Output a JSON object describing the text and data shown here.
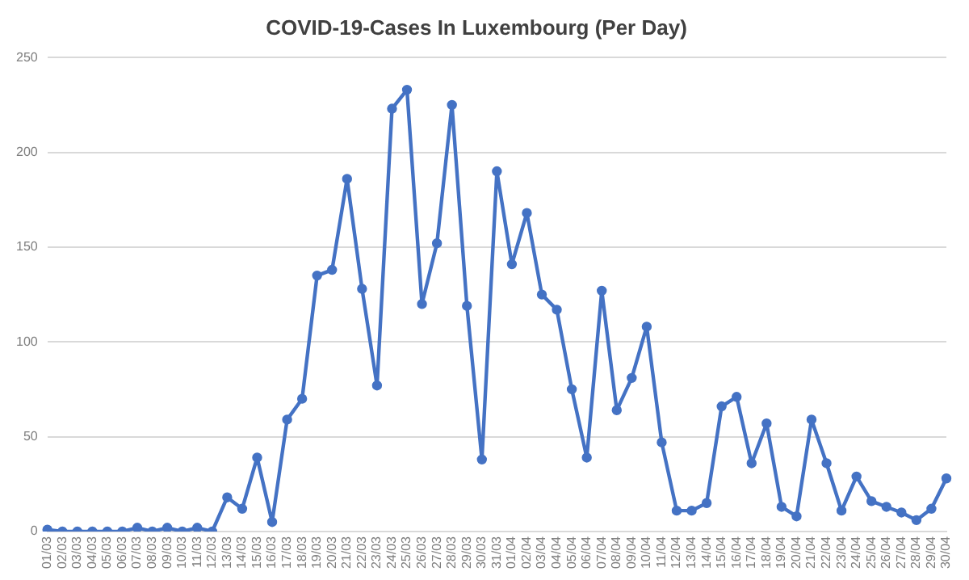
{
  "chart_data": {
    "type": "line",
    "title": "COVID-19-Cases In Luxembourg (Per Day)",
    "categories": [
      "01/03",
      "02/03",
      "03/03",
      "04/03",
      "05/03",
      "06/03",
      "07/03",
      "08/03",
      "09/03",
      "10/03",
      "11/03",
      "12/03",
      "13/03",
      "14/03",
      "15/03",
      "16/03",
      "17/03",
      "18/03",
      "19/03",
      "20/03",
      "21/03",
      "22/03",
      "23/03",
      "24/03",
      "25/03",
      "26/03",
      "27/03",
      "28/03",
      "29/03",
      "30/03",
      "31/03",
      "01/04",
      "02/04",
      "03/04",
      "04/04",
      "05/04",
      "06/04",
      "07/04",
      "08/04",
      "09/04",
      "10/04",
      "11/04",
      "12/04",
      "13/04",
      "14/04",
      "15/04",
      "16/04",
      "17/04",
      "18/04",
      "19/04",
      "20/04",
      "21/04",
      "22/04",
      "23/04",
      "24/04",
      "25/04",
      "26/04",
      "27/04",
      "28/04",
      "29/04",
      "30/04"
    ],
    "series": [
      {
        "color": "#4472c4",
        "values": [
          1,
          0,
          0,
          0,
          0,
          0,
          2,
          0,
          2,
          0,
          2,
          0,
          18,
          12,
          39,
          5,
          59,
          70,
          135,
          138,
          186,
          128,
          77,
          223,
          233,
          120,
          152,
          225,
          119,
          38,
          190,
          141,
          168,
          125,
          117,
          75,
          39,
          127,
          64,
          81,
          108,
          47,
          11,
          11,
          15,
          66,
          71,
          36,
          57,
          13,
          8,
          59,
          36,
          11,
          29,
          16,
          13,
          10,
          6,
          12,
          28
        ]
      }
    ],
    "ylim": [
      0,
      250
    ],
    "yticks": [
      0,
      50,
      100,
      150,
      200,
      250
    ],
    "grid": "y",
    "marker": "circle",
    "line_style": "solid",
    "legend": false
  }
}
